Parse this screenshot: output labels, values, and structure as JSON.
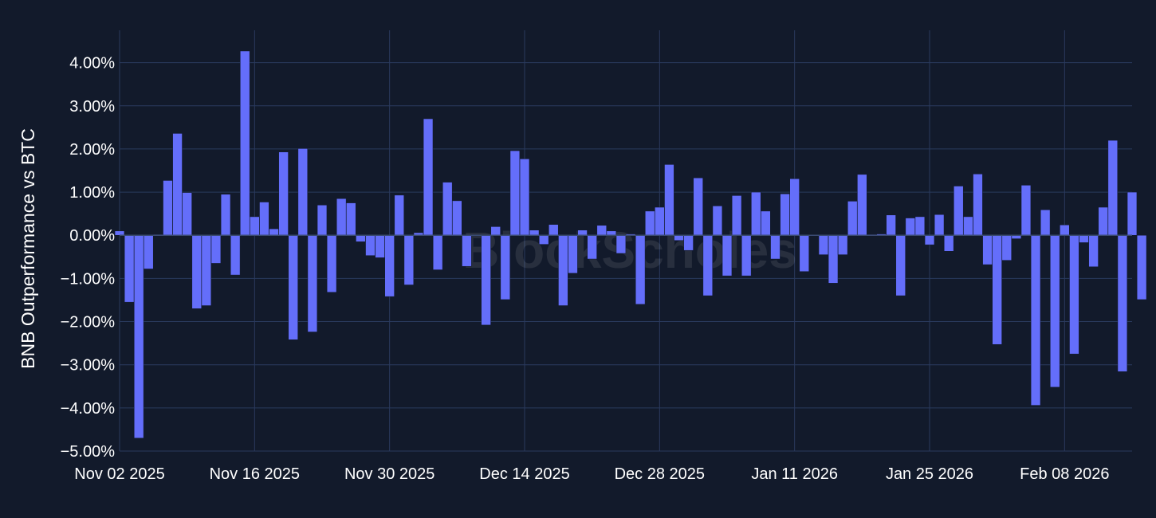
{
  "chart_data": {
    "type": "bar",
    "ylabel": "BNB Outperformance vs BTC",
    "watermark": "BlockScholes",
    "y_unit": "%",
    "ylim": [
      -5.0,
      4.75
    ],
    "yticks": [
      4,
      3,
      2,
      1,
      0,
      -1,
      -2,
      -3,
      -4,
      -5
    ],
    "ytick_labels": [
      "4.00%",
      "3.00%",
      "2.00%",
      "1.00%",
      "0.00%",
      "−1.00%",
      "−2.00%",
      "−3.00%",
      "−4.00%",
      "−5.00%"
    ],
    "x_start": "2025-11-02",
    "xlim": [
      "2025-11-02",
      "2026-02-15"
    ],
    "xticks": [
      "2025-11-02",
      "2025-11-16",
      "2025-11-30",
      "2025-12-14",
      "2025-12-28",
      "2026-01-11",
      "2026-01-25",
      "2026-02-08"
    ],
    "xtick_labels": [
      "Nov 02 2025",
      "Nov 16 2025",
      "Nov 30 2025",
      "Dec 14 2025",
      "Dec 28 2025",
      "Jan 11 2026",
      "Jan 25 2026",
      "Feb 08 2026"
    ],
    "grid": true,
    "colors": {
      "bar": "#646efa",
      "background": "#121a2b",
      "grid": "#2a3a5e"
    },
    "values": [
      0.1,
      -1.55,
      -4.7,
      -0.78,
      0.02,
      1.27,
      2.36,
      0.99,
      -1.7,
      -1.63,
      -0.65,
      0.95,
      -0.92,
      4.27,
      0.43,
      0.77,
      0.15,
      1.93,
      -2.42,
      2.01,
      -2.24,
      0.7,
      -1.32,
      0.85,
      0.75,
      -0.15,
      -0.47,
      -0.52,
      -1.42,
      0.93,
      -1.15,
      0.06,
      2.7,
      -0.8,
      1.23,
      0.8,
      -0.72,
      0.0,
      -2.08,
      0.2,
      -1.49,
      1.96,
      1.77,
      0.12,
      -0.21,
      0.25,
      -1.63,
      -0.88,
      0.12,
      -0.55,
      0.23,
      0.1,
      -0.42,
      0.03,
      -1.6,
      0.56,
      0.65,
      1.64,
      -0.12,
      -0.35,
      1.33,
      -1.4,
      0.68,
      -0.94,
      0.92,
      -0.94,
      1.0,
      0.56,
      -0.55,
      0.96,
      1.31,
      -0.84,
      0.0,
      -0.45,
      -1.11,
      -0.45,
      0.79,
      1.41,
      0.02,
      0.03,
      0.47,
      -1.4,
      0.4,
      0.43,
      -0.22,
      0.48,
      -0.37,
      1.14,
      0.43,
      1.42,
      -0.68,
      -2.53,
      -0.58,
      -0.08,
      1.16,
      -3.94,
      0.59,
      -3.52,
      0.24,
      -2.75,
      -0.17,
      -0.73,
      0.65,
      2.2,
      -3.16,
      1.0,
      -1.49
    ]
  }
}
